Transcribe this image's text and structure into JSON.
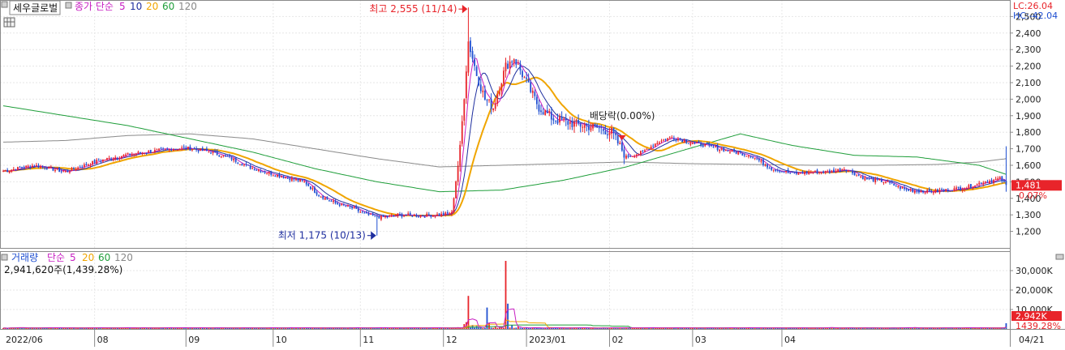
{
  "header": {
    "stock_name": "세우글로벌",
    "price_indicator": "종가 단순",
    "ma_periods": [
      "5",
      "10",
      "20",
      "60",
      "120"
    ],
    "lc_label": "LC:26.04",
    "hc_label": "HC:-42.04"
  },
  "annotations": {
    "high_label": "최고 2,555 (11/14)",
    "low_label": "최저 1,175 (10/13)",
    "dividend_label": "배당락(0.00%)"
  },
  "volume_header": {
    "title": "거래량",
    "ma_type": "단순",
    "ma_periods": [
      "5",
      "20",
      "60",
      "120"
    ],
    "current_line": "2,941,620주(1,439.28%)"
  },
  "price_badges": {
    "last_price": "1,481",
    "change_pct": "0.07%"
  },
  "volume_badges": {
    "last_volume": "2,942K",
    "ratio": "1439.28%"
  },
  "x_axis": {
    "date_labels": [
      "2022/06",
      "08",
      "09",
      "10",
      "11",
      "12",
      "2023/01",
      "02",
      "03",
      "04"
    ],
    "right_label": "04/21"
  },
  "colors": {
    "up": "#e8242a",
    "down": "#1f4fd1",
    "ma5": "#c71fc2",
    "ma10": "#1f2f9f",
    "ma20": "#f0a500",
    "ma60": "#1f9e3a",
    "ma120": "#8a8a8a",
    "badge": "#e8242a"
  },
  "chart_data": [
    {
      "type": "candlestick",
      "ylim": [
        1100,
        2600
      ],
      "yticks": [
        1200,
        1300,
        1400,
        1500,
        1600,
        1700,
        1800,
        1900,
        2000,
        2100,
        2200,
        2300,
        2400,
        2500
      ],
      "ytick_labels": [
        "1,200",
        "1,300",
        "1,400",
        "1,500",
        "1,600",
        "1,700",
        "1,800",
        "1,900",
        "2,000",
        "2,100",
        "2,200",
        "2,300",
        "2,400",
        "2,500"
      ],
      "close_trend": [
        [
          0,
          1565
        ],
        [
          15,
          1600
        ],
        [
          30,
          1560
        ],
        [
          45,
          1625
        ],
        [
          60,
          1665
        ],
        [
          75,
          1690
        ],
        [
          88,
          1705
        ],
        [
          100,
          1680
        ],
        [
          110,
          1640
        ],
        [
          118,
          1590
        ],
        [
          126,
          1560
        ],
        [
          135,
          1530
        ],
        [
          145,
          1500
        ],
        [
          152,
          1420
        ],
        [
          160,
          1370
        ],
        [
          168,
          1340
        ],
        [
          175,
          1300
        ],
        [
          182,
          1285
        ],
        [
          190,
          1300
        ],
        [
          200,
          1295
        ],
        [
          210,
          1300
        ],
        [
          216,
          1310
        ],
        [
          220,
          1700
        ],
        [
          224,
          2350
        ],
        [
          228,
          2150
        ],
        [
          232,
          2000
        ],
        [
          236,
          1950
        ],
        [
          242,
          2200
        ],
        [
          246,
          2250
        ],
        [
          250,
          2150
        ],
        [
          254,
          2050
        ],
        [
          258,
          1950
        ],
        [
          265,
          1880
        ],
        [
          275,
          1850
        ],
        [
          285,
          1830
        ],
        [
          293,
          1800
        ],
        [
          300,
          1650
        ],
        [
          308,
          1680
        ],
        [
          315,
          1740
        ],
        [
          322,
          1770
        ],
        [
          330,
          1740
        ],
        [
          338,
          1720
        ],
        [
          345,
          1700
        ],
        [
          352,
          1680
        ],
        [
          360,
          1660
        ],
        [
          370,
          1580
        ],
        [
          380,
          1550
        ],
        [
          390,
          1560
        ],
        [
          398,
          1560
        ],
        [
          405,
          1580
        ],
        [
          415,
          1520
        ],
        [
          425,
          1500
        ],
        [
          435,
          1450
        ],
        [
          445,
          1440
        ],
        [
          455,
          1450
        ],
        [
          465,
          1470
        ],
        [
          472,
          1500
        ],
        [
          477,
          1510
        ],
        [
          480,
          1520
        ],
        [
          483,
          1481
        ]
      ],
      "ma60_trend": [
        [
          0,
          1960
        ],
        [
          30,
          1900
        ],
        [
          60,
          1840
        ],
        [
          90,
          1760
        ],
        [
          120,
          1680
        ],
        [
          150,
          1580
        ],
        [
          180,
          1500
        ],
        [
          210,
          1440
        ],
        [
          240,
          1450
        ],
        [
          270,
          1510
        ],
        [
          300,
          1590
        ],
        [
          330,
          1700
        ],
        [
          355,
          1790
        ],
        [
          380,
          1720
        ],
        [
          410,
          1660
        ],
        [
          440,
          1650
        ],
        [
          470,
          1600
        ],
        [
          483,
          1545
        ]
      ],
      "ma120_trend": [
        [
          0,
          1740
        ],
        [
          30,
          1750
        ],
        [
          60,
          1780
        ],
        [
          90,
          1790
        ],
        [
          120,
          1760
        ],
        [
          150,
          1700
        ],
        [
          180,
          1640
        ],
        [
          210,
          1590
        ],
        [
          240,
          1600
        ],
        [
          270,
          1610
        ],
        [
          300,
          1620
        ],
        [
          330,
          1610
        ],
        [
          360,
          1605
        ],
        [
          390,
          1600
        ],
        [
          420,
          1600
        ],
        [
          450,
          1605
        ],
        [
          470,
          1620
        ],
        [
          483,
          1640
        ]
      ]
    },
    {
      "type": "bar",
      "title": "거래량",
      "ylim": [
        0,
        40000
      ],
      "yticks": [
        10000,
        20000,
        30000
      ],
      "ytick_labels": [
        "10,000K",
        "20,000K",
        "30,000K"
      ],
      "spikes": [
        [
          219,
          900
        ],
        [
          222,
          2500
        ],
        [
          223,
          3500
        ],
        [
          224,
          17000
        ],
        [
          226,
          2000
        ],
        [
          228,
          1500
        ],
        [
          233,
          11000
        ],
        [
          234,
          3000
        ],
        [
          237,
          1500
        ],
        [
          240,
          1000
        ],
        [
          242,
          35000
        ],
        [
          243,
          13000
        ],
        [
          245,
          2000
        ],
        [
          248,
          1500
        ],
        [
          252,
          800
        ],
        [
          483,
          2942
        ]
      ],
      "base_volume": 380
    }
  ]
}
